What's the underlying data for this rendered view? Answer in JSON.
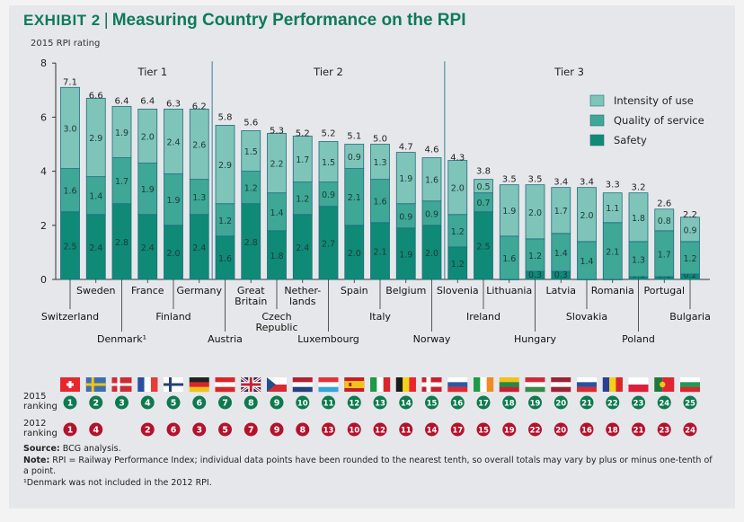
{
  "title": {
    "exhibit": "Exhibit 2",
    "text": "Measuring Country Performance on the RPI"
  },
  "notes": {
    "source_label": "Source:",
    "source": "BCG analysis.",
    "note_label": "Note:",
    "note": "RPI = Railway Performance Index; individual data points have been rounded to the nearest tenth, so overall totals may vary by plus or minus one-tenth of a point.",
    "footnote": "¹Denmark was not included in the 2012 RPI."
  },
  "row_labels": {
    "r2015": [
      "2015",
      "ranking"
    ],
    "r2012": [
      "2012",
      "ranking"
    ]
  },
  "colors": {
    "safety": "#0f8a76",
    "quality": "#3ea796",
    "intensity": "#7fc4b8",
    "bar_border": "#1e6d80",
    "rank2015": "#0d7a4e",
    "rank2012": "#b3122d"
  },
  "chart_data": {
    "type": "bar",
    "stacked": true,
    "ylabel": "2015 RPI rating",
    "ylim": [
      0,
      8
    ],
    "yticks": [
      0,
      2,
      4,
      6,
      8
    ],
    "legend_position": "top-right",
    "tiers": [
      {
        "label": "Tier 1",
        "from": 0,
        "to": 5
      },
      {
        "label": "Tier 2",
        "from": 6,
        "to": 14
      },
      {
        "label": "Tier 3",
        "from": 15,
        "to": 24
      }
    ],
    "categories": [
      "Switzerland",
      "Sweden",
      "Denmark¹",
      "France",
      "Finland",
      "Germany",
      "Austria",
      "Great Britain",
      "Czech Republic",
      "Nether-lands",
      "Luxembourg",
      "Spain",
      "Italy",
      "Belgium",
      "Norway",
      "Slovenia",
      "Ireland",
      "Lithuania",
      "Hungary",
      "Latvia",
      "Slovakia",
      "Romania",
      "Poland",
      "Portugal",
      "Bulgaria"
    ],
    "totals": [
      7.1,
      6.6,
      6.4,
      6.4,
      6.3,
      6.2,
      5.8,
      5.6,
      5.3,
      5.2,
      5.2,
      5.1,
      5.0,
      4.7,
      4.6,
      4.3,
      3.8,
      3.5,
      3.5,
      3.4,
      3.4,
      3.3,
      3.2,
      2.6,
      2.2
    ],
    "series": [
      {
        "name": "Safety",
        "values": [
          2.5,
          2.4,
          2.8,
          2.4,
          2.0,
          2.4,
          1.6,
          2.8,
          1.8,
          2.4,
          2.7,
          2.0,
          2.1,
          1.9,
          2.0,
          1.2,
          2.5,
          0.0,
          0.3,
          0.3,
          0.0,
          0.0,
          0.1,
          0.1,
          0.2
        ]
      },
      {
        "name": "Quality of service",
        "values": [
          1.6,
          1.4,
          1.7,
          1.9,
          1.9,
          1.3,
          1.2,
          1.2,
          1.4,
          1.2,
          0.9,
          2.1,
          1.6,
          0.9,
          0.9,
          1.2,
          0.7,
          1.6,
          1.2,
          1.4,
          1.4,
          2.1,
          1.3,
          1.7,
          1.2
        ]
      },
      {
        "name": "Intensity of use",
        "values": [
          3.0,
          2.9,
          1.9,
          2.0,
          2.4,
          2.6,
          2.9,
          1.5,
          2.2,
          1.7,
          1.5,
          0.9,
          1.3,
          1.9,
          1.6,
          2.0,
          0.5,
          1.9,
          2.0,
          1.7,
          2.0,
          1.1,
          1.8,
          0.8,
          0.9
        ]
      }
    ],
    "rank_2015": [
      "1",
      "2",
      "3",
      "4",
      "5",
      "6",
      "7",
      "8",
      "9",
      "10",
      "11",
      "12",
      "13",
      "14",
      "15",
      "16",
      "17",
      "18",
      "19",
      "20",
      "21",
      "22",
      "23",
      "24",
      "25"
    ],
    "rank_2012": [
      "1",
      "4",
      "",
      "2",
      "6",
      "3",
      "5",
      "7",
      "9",
      "8",
      "13",
      "10",
      "12",
      "11",
      "14",
      "17",
      "15",
      "19",
      "22",
      "20",
      "16",
      "18",
      "21",
      "23",
      "24"
    ],
    "flags": [
      {
        "o": "swiss",
        "c": [
          "#e8262e",
          "#ffffff"
        ]
      },
      {
        "o": "nordic",
        "c": [
          "#3d6fb0",
          "#f3c21a"
        ]
      },
      {
        "o": "nordic",
        "c": [
          "#cf2b36",
          "#ffffff"
        ]
      },
      {
        "o": "v",
        "c": [
          "#2a4fa0",
          "#ffffff",
          "#e83a3a"
        ]
      },
      {
        "o": "nordic",
        "c": [
          "#ffffff",
          "#24417d"
        ]
      },
      {
        "o": "h",
        "c": [
          "#222222",
          "#d8262b",
          "#f2c21a"
        ]
      },
      {
        "o": "h",
        "c": [
          "#d8262b",
          "#ffffff",
          "#d8262b"
        ]
      },
      {
        "o": "uk",
        "c": [
          "#27306a",
          "#ffffff",
          "#c8202e"
        ]
      },
      {
        "o": "cz",
        "c": [
          "#ffffff",
          "#d52b35",
          "#1f4f91"
        ]
      },
      {
        "o": "h",
        "c": [
          "#b0202e",
          "#ffffff",
          "#24417d"
        ]
      },
      {
        "o": "h",
        "c": [
          "#e6313a",
          "#ffffff",
          "#32a5dc"
        ]
      },
      {
        "o": "es",
        "c": [
          "#c81e26",
          "#f3c21a",
          "#c81e26"
        ]
      },
      {
        "o": "v",
        "c": [
          "#1f9a48",
          "#ffffff",
          "#d8262b"
        ]
      },
      {
        "o": "v",
        "c": [
          "#1c1c1c",
          "#f3d21a",
          "#e8262e"
        ]
      },
      {
        "o": "nordic",
        "c": [
          "#c8202e",
          "#ffffff"
        ]
      },
      {
        "o": "h",
        "c": [
          "#ffffff",
          "#2d58a8",
          "#e02a30"
        ]
      },
      {
        "o": "v",
        "c": [
          "#1f9a48",
          "#ffffff",
          "#f08a24"
        ]
      },
      {
        "o": "h",
        "c": [
          "#f3c21a",
          "#1f8a4a",
          "#c8202e"
        ]
      },
      {
        "o": "h",
        "c": [
          "#cf2b36",
          "#ffffff",
          "#3a8a4a"
        ]
      },
      {
        "o": "h",
        "c": [
          "#9b2335",
          "#ffffff",
          "#9b2335"
        ]
      },
      {
        "o": "h",
        "c": [
          "#ffffff",
          "#2852a3",
          "#e02a30"
        ]
      },
      {
        "o": "v",
        "c": [
          "#2a3f95",
          "#f3d21a",
          "#d8262b"
        ]
      },
      {
        "o": "h",
        "c": [
          "#ffffff",
          "#dc1f3a"
        ]
      },
      {
        "o": "pt",
        "c": [
          "#1f7a3a",
          "#e0262e"
        ]
      },
      {
        "o": "h",
        "c": [
          "#ffffff",
          "#1f9a56",
          "#d8262b"
        ]
      }
    ]
  }
}
